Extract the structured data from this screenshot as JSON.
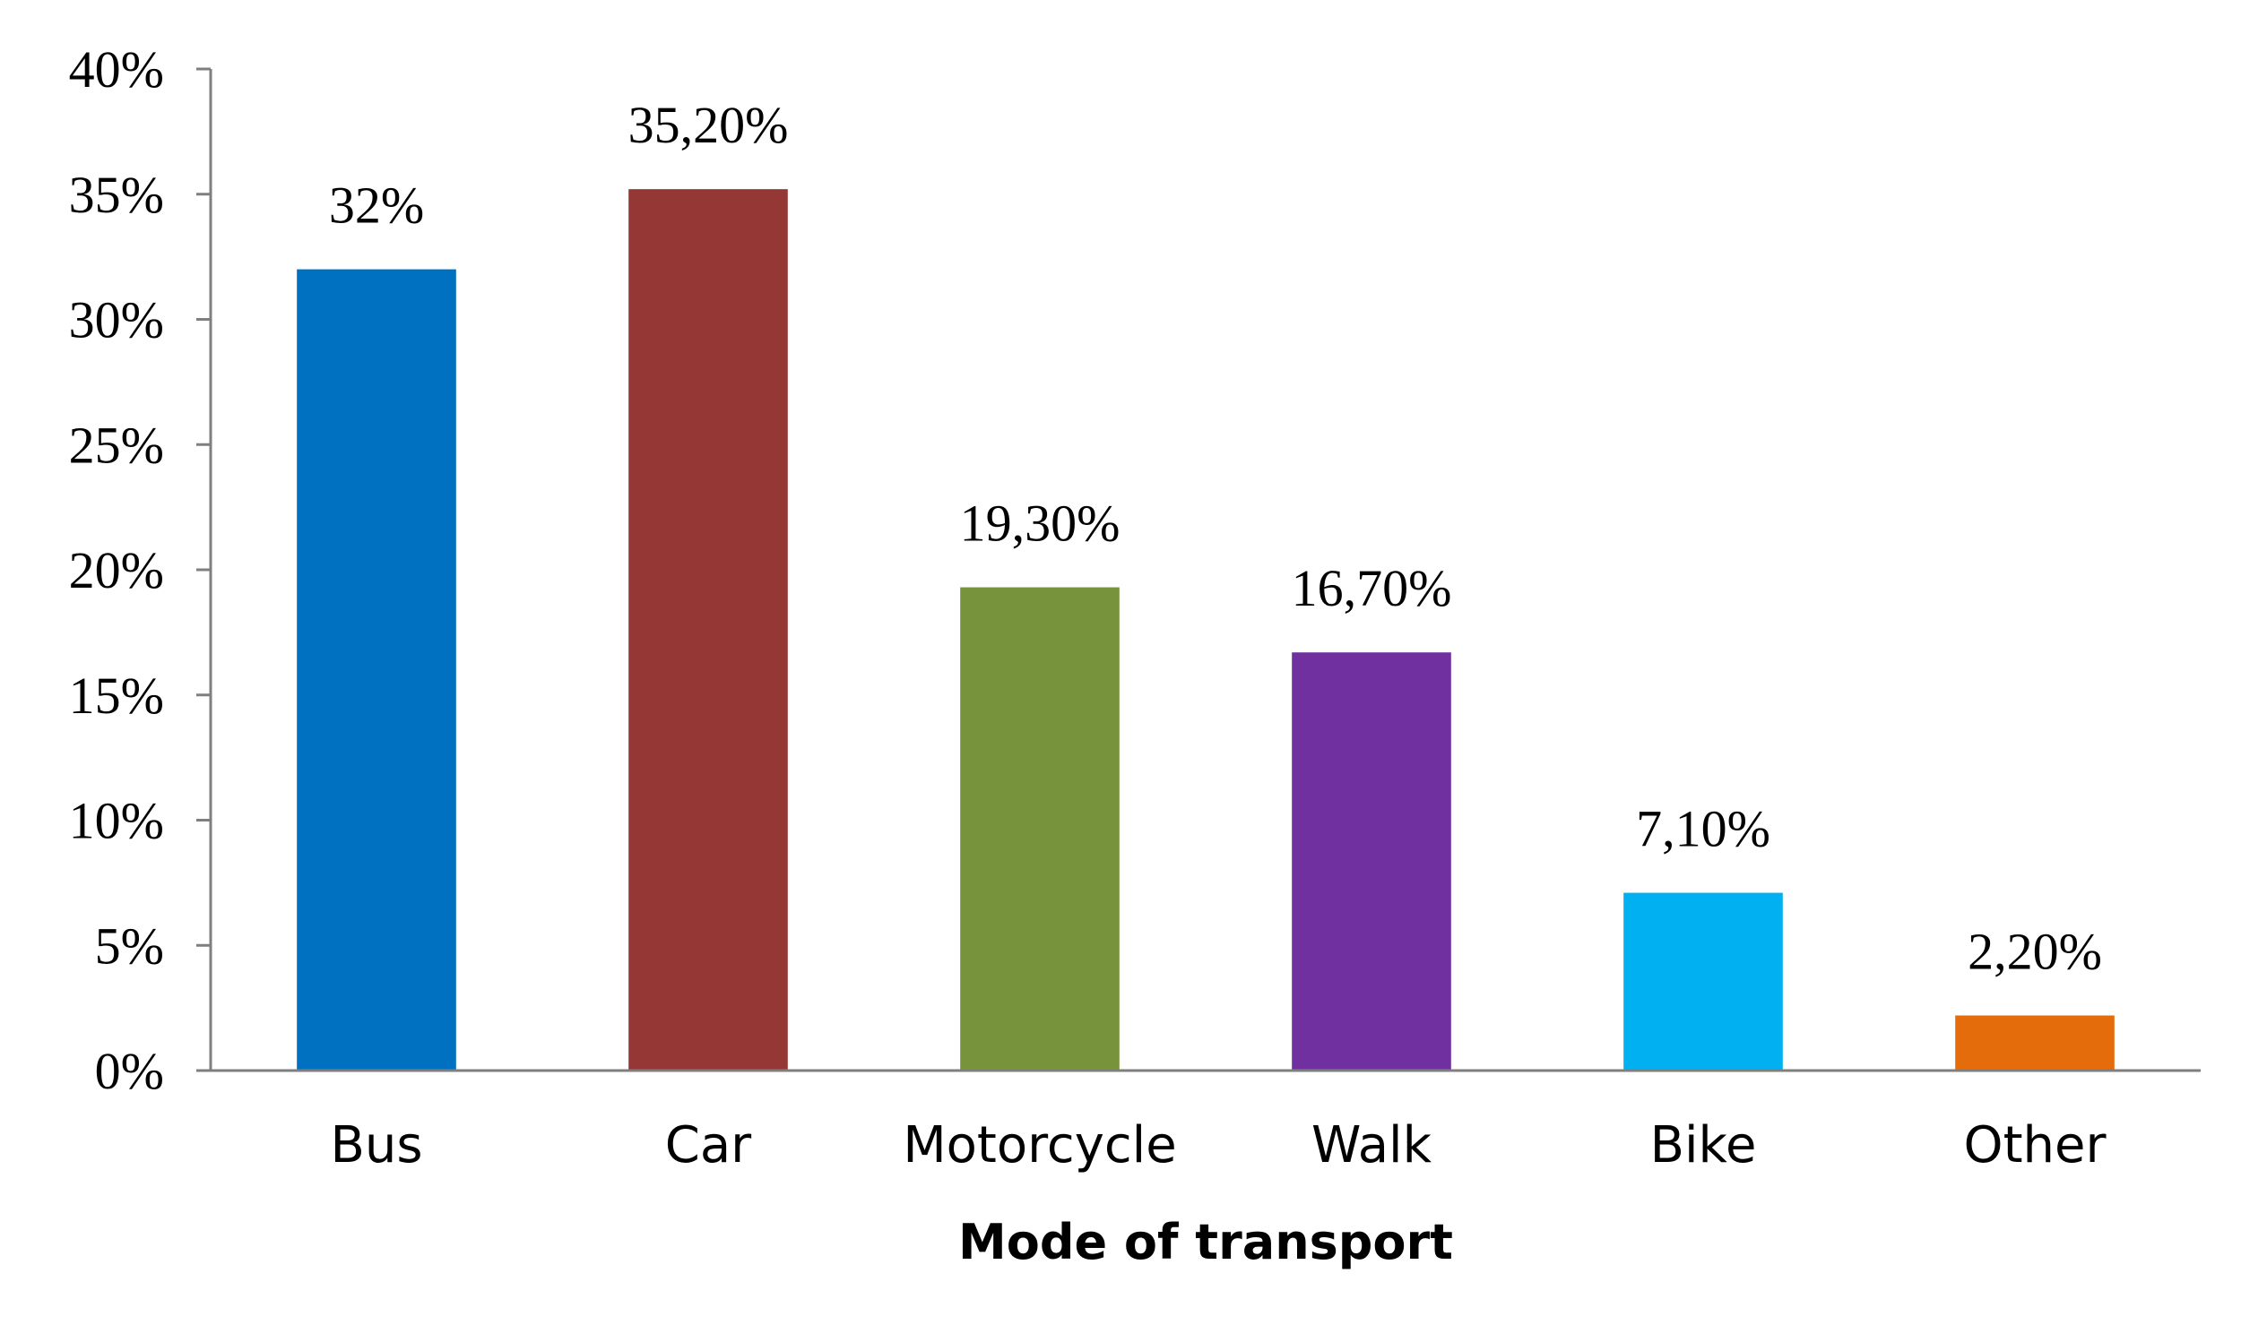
{
  "chart_data": {
    "type": "bar",
    "categories": [
      "Bus",
      "Car",
      "Motorcycle",
      "Walk",
      "Bike",
      "Other"
    ],
    "values": [
      32,
      35.2,
      19.3,
      16.7,
      7.1,
      2.2
    ],
    "data_labels": [
      "32%",
      "35,20%",
      "19,30%",
      "16,70%",
      "7,10%",
      "2,20%"
    ],
    "colors": [
      "#0070c0",
      "#953735",
      "#77933c",
      "#7030a0",
      "#00b0f0",
      "#e46c0a"
    ],
    "title": "",
    "xlabel": "Mode of transport",
    "ylabel": "",
    "ylim": [
      0,
      40
    ],
    "yticks": [
      0,
      5,
      10,
      15,
      20,
      25,
      30,
      35,
      40
    ],
    "ytick_labels": [
      "0%",
      "5%",
      "10%",
      "15%",
      "20%",
      "25%",
      "30%",
      "35%",
      "40%"
    ],
    "grid": false,
    "legend": "none"
  }
}
